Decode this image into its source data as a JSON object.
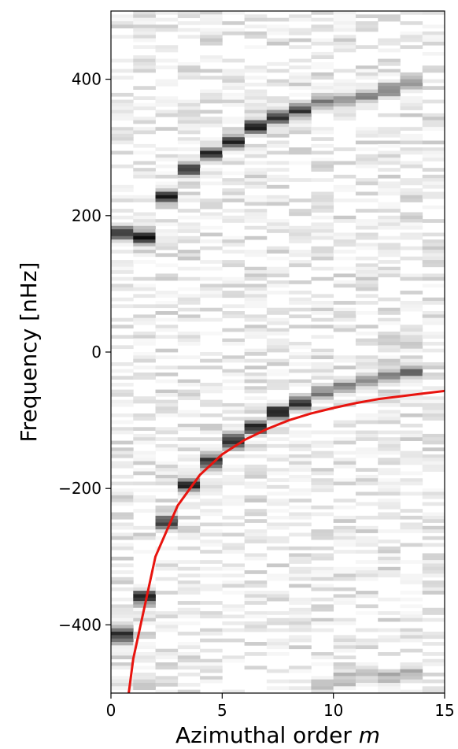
{
  "chart_data": {
    "type": "heatmap",
    "title": "",
    "xlabel": "Azimuthal order",
    "xlabel_var": "m",
    "ylabel": "Frequency [nHz]",
    "xlim": [
      0,
      15
    ],
    "ylim": [
      -500,
      500
    ],
    "x_ticks": [
      0,
      5,
      10,
      15
    ],
    "y_ticks": [
      -400,
      -200,
      0,
      200,
      400
    ],
    "colormap": "grayscale (white = low power, black = high power)",
    "grid": false,
    "legend": "none",
    "power_ridges": [
      {
        "name": "",
        "points": [
          {
            "m": 1,
            "freq": 175
          },
          {
            "m": 2,
            "freq": 168
          },
          {
            "m": 3,
            "freq": 228
          },
          {
            "m": 4,
            "freq": 268
          },
          {
            "m": 5,
            "freq": 290
          },
          {
            "m": 6,
            "freq": 308
          },
          {
            "m": 7,
            "freq": 330
          },
          {
            "m": 8,
            "freq": 345
          },
          {
            "m": 9,
            "freq": 355
          },
          {
            "m": 10,
            "freq": 365
          },
          {
            "m": 11,
            "freq": 370
          },
          {
            "m": 12,
            "freq": 375
          },
          {
            "m": 13,
            "freq": 385
          },
          {
            "m": 14,
            "freq": 395
          }
        ]
      },
      {
        "name": "",
        "points": [
          {
            "m": 1,
            "freq": -415
          },
          {
            "m": 2,
            "freq": -360
          },
          {
            "m": 3,
            "freq": -250
          },
          {
            "m": 4,
            "freq": -195
          },
          {
            "m": 5,
            "freq": -160
          },
          {
            "m": 6,
            "freq": -130
          },
          {
            "m": 7,
            "freq": -110
          },
          {
            "m": 8,
            "freq": -88
          },
          {
            "m": 9,
            "freq": -75
          },
          {
            "m": 10,
            "freq": -60
          },
          {
            "m": 11,
            "freq": -50
          },
          {
            "m": 12,
            "freq": -42
          },
          {
            "m": 13,
            "freq": -35
          },
          {
            "m": 14,
            "freq": -28
          }
        ]
      },
      {
        "name": "",
        "points": [
          {
            "m": 10,
            "freq": -490
          },
          {
            "m": 11,
            "freq": -480
          },
          {
            "m": 12,
            "freq": -470
          },
          {
            "m": 13,
            "freq": -478
          },
          {
            "m": 14,
            "freq": -470
          }
        ]
      }
    ],
    "model_curve": {
      "name": "",
      "color": "#e8140f",
      "points": [
        {
          "m": 0.8,
          "freq": -500
        },
        {
          "m": 1,
          "freq": -450
        },
        {
          "m": 2,
          "freq": -300
        },
        {
          "m": 3,
          "freq": -225
        },
        {
          "m": 4,
          "freq": -180
        },
        {
          "m": 5,
          "freq": -150
        },
        {
          "m": 6,
          "freq": -129
        },
        {
          "m": 7,
          "freq": -113
        },
        {
          "m": 8,
          "freq": -100
        },
        {
          "m": 9,
          "freq": -90
        },
        {
          "m": 10,
          "freq": -82
        },
        {
          "m": 11,
          "freq": -75
        },
        {
          "m": 12,
          "freq": -69
        },
        {
          "m": 13,
          "freq": -65
        },
        {
          "m": 14,
          "freq": -61
        },
        {
          "m": 15,
          "freq": -57
        }
      ]
    }
  }
}
